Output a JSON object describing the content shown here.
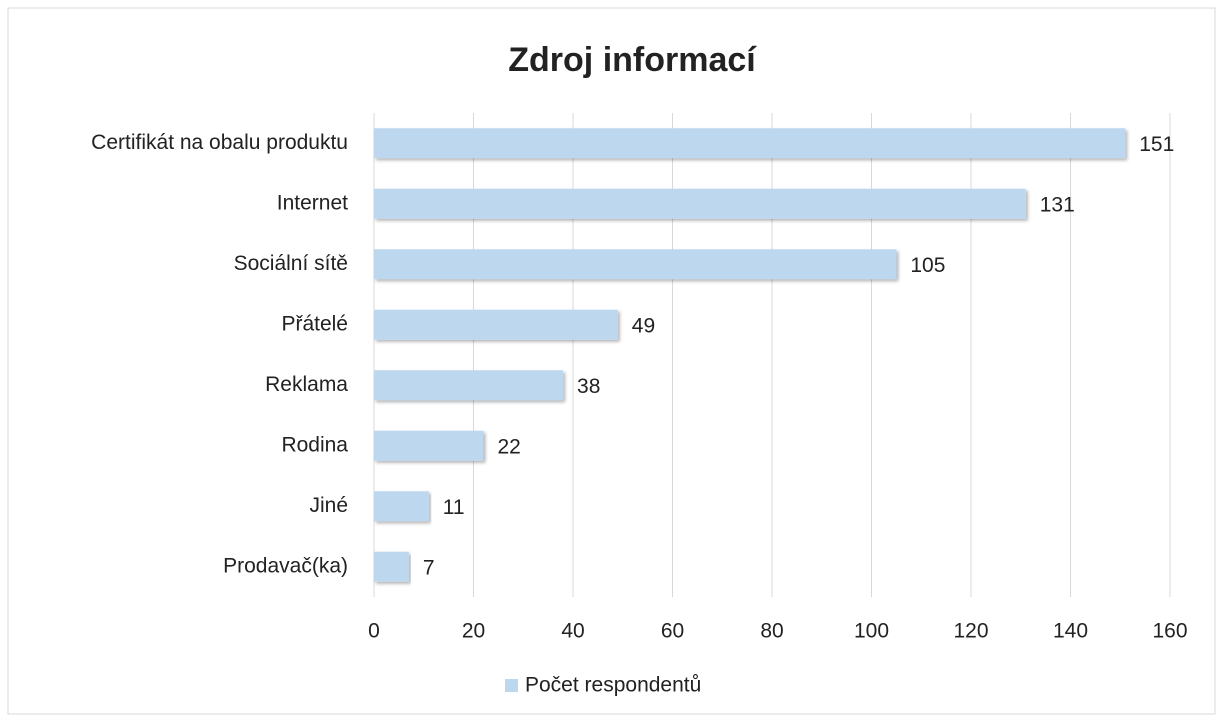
{
  "chart_data": {
    "type": "bar",
    "orientation": "horizontal",
    "title": "Zdroj informací",
    "categories": [
      "Certifikát na obalu produktu",
      "Internet",
      "Sociální sítě",
      "Přátelé",
      "Reklama",
      "Rodina",
      "Jiné",
      "Prodavač(ka)"
    ],
    "series": [
      {
        "name": "Počet respondentů",
        "color": "#bdd7ee",
        "values": [
          151,
          131,
          105,
          49,
          38,
          22,
          11,
          7
        ]
      }
    ],
    "xlim": [
      0,
      160
    ],
    "xticks": [
      0,
      20,
      40,
      60,
      80,
      100,
      120,
      140,
      160
    ],
    "grid": true,
    "legend": "bottom"
  }
}
